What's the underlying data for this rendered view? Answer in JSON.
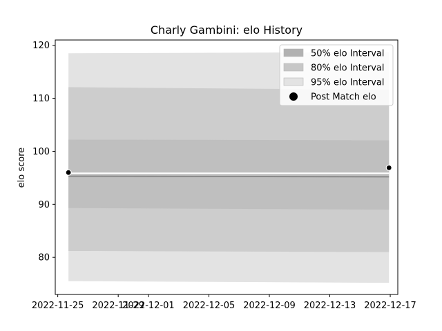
{
  "chart_data": {
    "type": "area",
    "title": "Charly Gambini: elo History",
    "xlabel": "",
    "ylabel": "elo score",
    "xlim": [
      "2022-11-24T20:00",
      "2022-12-17T12:00"
    ],
    "ylim": [
      73,
      121
    ],
    "x_ticks": [
      "2022-11-25",
      "2022-11-29",
      "2022-12-01",
      "2022-12-05",
      "2022-12-09",
      "2022-12-13",
      "2022-12-17"
    ],
    "y_ticks": [
      80,
      90,
      100,
      110,
      120
    ],
    "grid": false,
    "legend_position": "upper right",
    "dates": [
      "2022-11-25T17:00",
      "2022-12-16T22:00"
    ],
    "mean": [
      95.3,
      95.2
    ],
    "bands": [
      {
        "name": "95% elo Interval",
        "lower": [
          75.5,
          75.2
        ],
        "upper": [
          118.5,
          118.7
        ],
        "color": "#e3e3e3"
      },
      {
        "name": "80% elo Interval",
        "lower": [
          81.2,
          81.0
        ],
        "upper": [
          112.1,
          111.6
        ],
        "color": "#cdcdcd"
      },
      {
        "name": "50% elo Interval",
        "lower": [
          89.3,
          89.0
        ],
        "upper": [
          102.2,
          102.1
        ],
        "color": "#bfbfbf"
      }
    ],
    "post_match": {
      "name": "Post Match elo",
      "dates": [
        "2022-11-25T17:00",
        "2022-12-16T22:00"
      ],
      "values": [
        96.0,
        96.9
      ]
    },
    "legend": [
      "50% elo Interval",
      "80% elo Interval",
      "95% elo Interval",
      "Post Match elo"
    ],
    "colors": {
      "band50": "#b1b1b1",
      "band80": "#c7c7c7",
      "band95": "#e3e3e3",
      "mean_line": "#8a8a8a",
      "trend_line": "#ffffff",
      "marker": "#000000"
    }
  }
}
